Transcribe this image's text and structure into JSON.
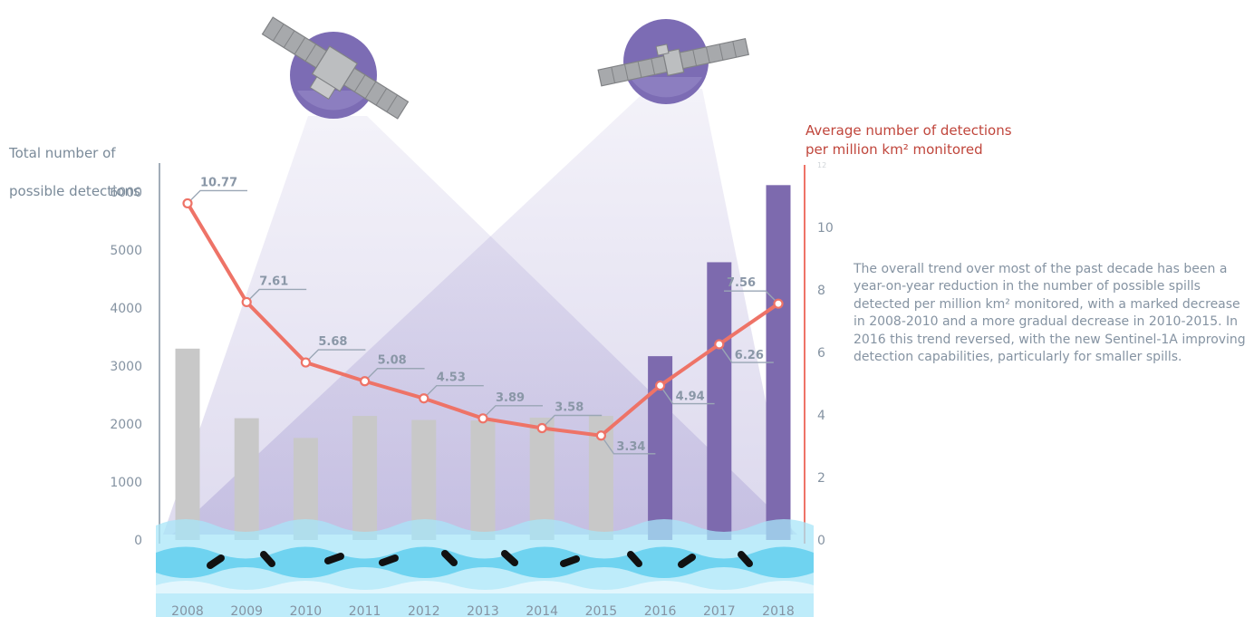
{
  "chart_data": {
    "type": "bar",
    "title": "",
    "xlabel": "",
    "categories": [
      "2008",
      "2009",
      "2010",
      "2011",
      "2012",
      "2013",
      "2014",
      "2015",
      "2016",
      "2017",
      "2018"
    ],
    "series": [
      {
        "type": "bar",
        "axis": "left",
        "values": [
          3300,
          2100,
          1760,
          2140,
          2070,
          2060,
          2110,
          2140,
          3170,
          4790,
          6120
        ],
        "colors": [
          "#c8c8c8",
          "#c8c8c8",
          "#c8c8c8",
          "#c8c8c8",
          "#c8c8c8",
          "#c8c8c8",
          "#c8c8c8",
          "#c8c8c8",
          "#7d6aae",
          "#7d6aae",
          "#7d6aae"
        ]
      },
      {
        "type": "line",
        "axis": "right",
        "values": [
          10.77,
          7.61,
          5.68,
          5.08,
          4.53,
          3.89,
          3.58,
          3.34,
          4.94,
          6.26,
          7.56
        ],
        "labels": [
          "10.77",
          "7.61",
          "5.68",
          "5.08",
          "4.53",
          "3.89",
          "3.58",
          "3.34",
          "4.94",
          "6.26",
          "7.56"
        ],
        "color": "#ee7367"
      }
    ],
    "y_left": {
      "label_lines": [
        "Total number of",
        "possible detections"
      ],
      "ylim": [
        0,
        6000
      ],
      "ticks": [
        "0",
        "1000",
        "2000",
        "3000",
        "4000",
        "5000",
        "6000"
      ]
    },
    "y_right": {
      "label_lines": [
        "Average number of detections",
        "per million km² monitored"
      ],
      "ylim": [
        0,
        12
      ],
      "ticks": [
        "0",
        "2",
        "4",
        "6",
        "8",
        "10",
        "12"
      ],
      "color": "#ee7367"
    },
    "grid": false,
    "legend": "none"
  },
  "caption": "The overall trend over most of the past decade has been a year-on-year reduction in the number of possible spills detected per million km² monitored, with a marked decrease in 2008-2010 and a more gradual decrease in 2010-2015. In 2016 this trend reversed, with the new Sentinel-1A improving detection capabilities, particularly for smaller spills.",
  "decorations": {
    "satellite_icons": [
      "satellite-icon",
      "satellite-icon"
    ],
    "water_icon": "water-waves-icon",
    "oil_spill_icon": "oil-spill-icon"
  },
  "colors": {
    "bar_old": "#c8c8c8",
    "bar_new": "#7d6aae",
    "line": "#ee7367",
    "left_axis_text": "#7a8a99",
    "right_axis_text": "#c0463c",
    "label_line": "#9aa6b5",
    "water_light": "#a8e6f8",
    "water_mid": "#6fd3f0"
  }
}
